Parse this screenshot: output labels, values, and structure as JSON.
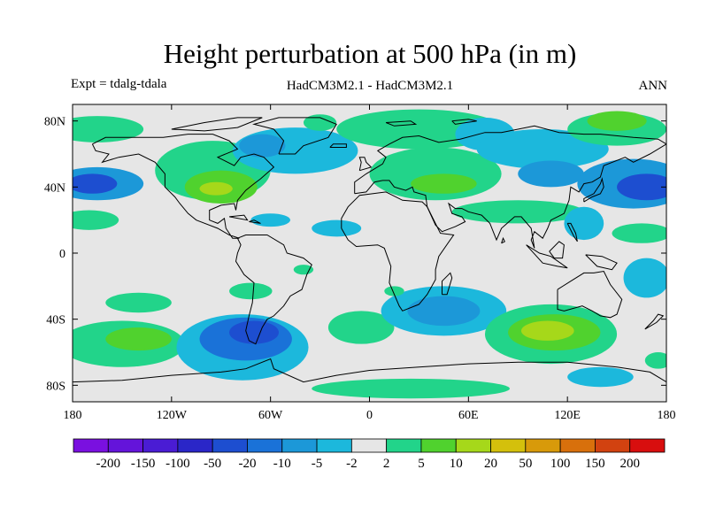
{
  "chart_data": {
    "type": "heatmap",
    "title": "Height perturbation at 500 hPa (in m)",
    "subtitle_left": "Expt = tdalg-tdala",
    "subtitle_center": "HadCM3M2.1 - HadCM3M2.1",
    "subtitle_right": "ANN",
    "xlim": [
      -180,
      180
    ],
    "ylim": [
      -90,
      90
    ],
    "x_ticks": [
      {
        "value": -180,
        "label": "180"
      },
      {
        "value": -120,
        "label": "120W"
      },
      {
        "value": -60,
        "label": "60W"
      },
      {
        "value": 0,
        "label": "0"
      },
      {
        "value": 60,
        "label": "60E"
      },
      {
        "value": 120,
        "label": "120E"
      },
      {
        "value": 180,
        "label": "180"
      }
    ],
    "y_ticks": [
      {
        "value": 80,
        "label": "80N"
      },
      {
        "value": 40,
        "label": "40N"
      },
      {
        "value": 0,
        "label": "0"
      },
      {
        "value": -40,
        "label": "40S"
      },
      {
        "value": -80,
        "label": "80S"
      }
    ],
    "legend": {
      "levels": [
        "-200",
        "-150",
        "-100",
        "-50",
        "-20",
        "-10",
        "-5",
        "-2",
        "2",
        "5",
        "10",
        "20",
        "50",
        "100",
        "150",
        "200"
      ],
      "colors": [
        "#7a10e0",
        "#6414da",
        "#4a1cd4",
        "#2a26c8",
        "#1d4ed0",
        "#1a72d8",
        "#1c98d8",
        "#1cb8dc",
        "#e6e6e6",
        "#22d48a",
        "#50d22e",
        "#a6d81a",
        "#d4c00c",
        "#d89a0a",
        "#d8700c",
        "#d24210",
        "#d80e0e"
      ]
    },
    "regions": [
      {
        "shape": "ellipse",
        "lon": -165,
        "lat": 42,
        "rlon": 28,
        "rlat": 10,
        "color": "#1c98d8"
      },
      {
        "shape": "ellipse",
        "lon": -168,
        "lat": 42,
        "rlon": 15,
        "rlat": 6,
        "color": "#1d4ed0"
      },
      {
        "shape": "ellipse",
        "lon": -170,
        "lat": 20,
        "rlon": 18,
        "rlat": 6,
        "color": "#22d48a"
      },
      {
        "shape": "ellipse",
        "lon": -165,
        "lat": 75,
        "rlon": 28,
        "rlat": 8,
        "color": "#22d48a"
      },
      {
        "shape": "ellipse",
        "lon": -95,
        "lat": 50,
        "rlon": 35,
        "rlat": 18,
        "color": "#22d48a"
      },
      {
        "shape": "ellipse",
        "lon": -90,
        "lat": 40,
        "rlon": 22,
        "rlat": 10,
        "color": "#50d22e"
      },
      {
        "shape": "ellipse",
        "lon": -93,
        "lat": 39,
        "rlon": 10,
        "rlat": 4,
        "color": "#a6d81a"
      },
      {
        "shape": "ellipse",
        "lon": -45,
        "lat": 62,
        "rlon": 38,
        "rlat": 14,
        "color": "#1cb8dc"
      },
      {
        "shape": "ellipse",
        "lon": -65,
        "lat": 65,
        "rlon": 14,
        "rlat": 7,
        "color": "#1c98d8"
      },
      {
        "shape": "ellipse",
        "lon": -30,
        "lat": 79,
        "rlon": 10,
        "rlat": 5,
        "color": "#22d48a"
      },
      {
        "shape": "ellipse",
        "lon": -60,
        "lat": 20,
        "rlon": 12,
        "rlat": 4,
        "color": "#1cb8dc"
      },
      {
        "shape": "ellipse",
        "lon": -20,
        "lat": 15,
        "rlon": 15,
        "rlat": 5,
        "color": "#1cb8dc"
      },
      {
        "shape": "ellipse",
        "lon": 30,
        "lat": 75,
        "rlon": 50,
        "rlat": 12,
        "color": "#22d48a"
      },
      {
        "shape": "ellipse",
        "lon": 40,
        "lat": 48,
        "rlon": 40,
        "rlat": 16,
        "color": "#22d48a"
      },
      {
        "shape": "ellipse",
        "lon": 45,
        "lat": 42,
        "rlon": 20,
        "rlat": 6,
        "color": "#50d22e"
      },
      {
        "shape": "ellipse",
        "lon": 70,
        "lat": 72,
        "rlon": 18,
        "rlat": 10,
        "color": "#1cb8dc"
      },
      {
        "shape": "ellipse",
        "lon": 105,
        "lat": 63,
        "rlon": 40,
        "rlat": 12,
        "color": "#1cb8dc"
      },
      {
        "shape": "ellipse",
        "lon": 110,
        "lat": 48,
        "rlon": 20,
        "rlat": 8,
        "color": "#1c98d8"
      },
      {
        "shape": "ellipse",
        "lon": 150,
        "lat": 75,
        "rlon": 30,
        "rlat": 10,
        "color": "#22d48a"
      },
      {
        "shape": "ellipse",
        "lon": 150,
        "lat": 80,
        "rlon": 18,
        "rlat": 6,
        "color": "#50d22e"
      },
      {
        "shape": "ellipse",
        "lon": 160,
        "lat": 42,
        "rlon": 34,
        "rlat": 15,
        "color": "#1c98d8"
      },
      {
        "shape": "ellipse",
        "lon": 168,
        "lat": 40,
        "rlon": 18,
        "rlat": 8,
        "color": "#1d4ed0"
      },
      {
        "shape": "ellipse",
        "lon": 90,
        "lat": 25,
        "rlon": 40,
        "rlat": 7,
        "color": "#22d48a"
      },
      {
        "shape": "ellipse",
        "lon": 165,
        "lat": 12,
        "rlon": 18,
        "rlat": 6,
        "color": "#22d48a"
      },
      {
        "shape": "ellipse",
        "lon": 130,
        "lat": 18,
        "rlon": 12,
        "rlat": 10,
        "color": "#1cb8dc"
      },
      {
        "shape": "ellipse",
        "lon": -140,
        "lat": -30,
        "rlon": 20,
        "rlat": 6,
        "color": "#22d48a"
      },
      {
        "shape": "ellipse",
        "lon": -150,
        "lat": -55,
        "rlon": 38,
        "rlat": 14,
        "color": "#22d48a"
      },
      {
        "shape": "ellipse",
        "lon": -140,
        "lat": -52,
        "rlon": 20,
        "rlat": 7,
        "color": "#50d22e"
      },
      {
        "shape": "ellipse",
        "lon": -77,
        "lat": -57,
        "rlon": 40,
        "rlat": 20,
        "color": "#1cb8dc"
      },
      {
        "shape": "ellipse",
        "lon": -75,
        "lat": -52,
        "rlon": 28,
        "rlat": 13,
        "color": "#1a72d8"
      },
      {
        "shape": "ellipse",
        "lon": -70,
        "lat": -48,
        "rlon": 15,
        "rlat": 7,
        "color": "#1d4ed0"
      },
      {
        "shape": "ellipse",
        "lon": -72,
        "lat": -23,
        "rlon": 13,
        "rlat": 5,
        "color": "#22d48a"
      },
      {
        "shape": "ellipse",
        "lon": -5,
        "lat": -45,
        "rlon": 20,
        "rlat": 10,
        "color": "#22d48a"
      },
      {
        "shape": "ellipse",
        "lon": 45,
        "lat": -35,
        "rlon": 38,
        "rlat": 15,
        "color": "#1cb8dc"
      },
      {
        "shape": "ellipse",
        "lon": 45,
        "lat": -35,
        "rlon": 22,
        "rlat": 9,
        "color": "#1c98d8"
      },
      {
        "shape": "ellipse",
        "lon": 25,
        "lat": -82,
        "rlon": 60,
        "rlat": 6,
        "color": "#22d48a"
      },
      {
        "shape": "ellipse",
        "lon": 110,
        "lat": -49,
        "rlon": 40,
        "rlat": 18,
        "color": "#22d48a"
      },
      {
        "shape": "ellipse",
        "lon": 112,
        "lat": -48,
        "rlon": 28,
        "rlat": 11,
        "color": "#50d22e"
      },
      {
        "shape": "ellipse",
        "lon": 108,
        "lat": -47,
        "rlon": 16,
        "rlat": 6,
        "color": "#a6d81a"
      },
      {
        "shape": "ellipse",
        "lon": 140,
        "lat": -75,
        "rlon": 20,
        "rlat": 6,
        "color": "#1cb8dc"
      },
      {
        "shape": "ellipse",
        "lon": 168,
        "lat": -15,
        "rlon": 14,
        "rlat": 12,
        "color": "#1cb8dc"
      },
      {
        "shape": "ellipse",
        "lon": 175,
        "lat": -65,
        "rlon": 8,
        "rlat": 5,
        "color": "#22d48a"
      },
      {
        "shape": "ellipse",
        "lon": 15,
        "lat": -23,
        "rlon": 6,
        "rlat": 3,
        "color": "#22d48a"
      },
      {
        "shape": "ellipse",
        "lon": -40,
        "lat": -10,
        "rlon": 6,
        "rlat": 3,
        "color": "#22d48a"
      }
    ]
  }
}
